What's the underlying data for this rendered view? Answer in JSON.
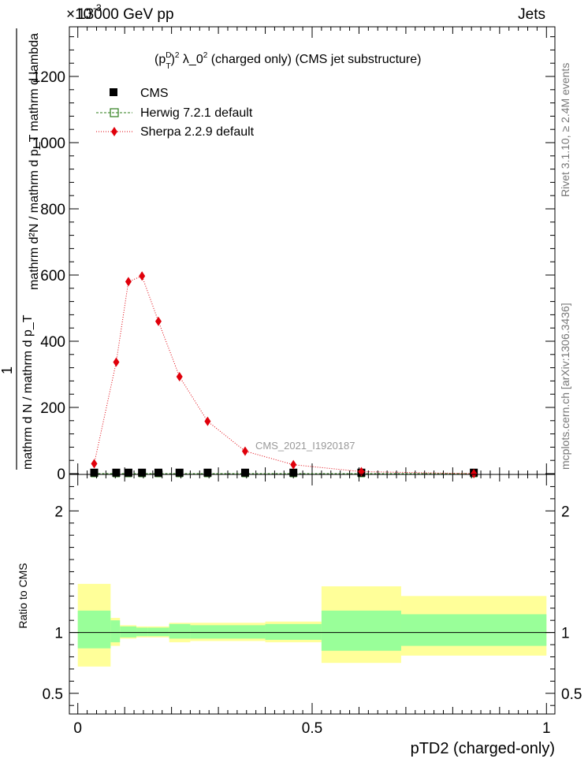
{
  "header": {
    "energy_label": "13000 GeV pp",
    "process_label": "Jets",
    "exponent_label": "×10",
    "exponent_power": "-3"
  },
  "plot": {
    "title_prefix": "(p",
    "title_sup": "D",
    "title_sub": "T",
    "title_rest": ")",
    "title_pow": "2",
    "title_suffix": " λ_0",
    "title_suffix_pow": "2",
    "title_tail": " (charged only) (CMS jet substructure)",
    "analysis_id": "CMS_2021_I1920187",
    "ylabel_top": "mathrm d²N / mathrm d p_T mathrm d lambda",
    "ylabel_numerator": "1",
    "ylabel_denominator": "mathrm d N / mathrm d p_T",
    "side_label_rivet": "Rivet 3.1.10, ≥ 2.4M events",
    "side_label_mcplots": "mcplots.cern.ch [arXiv:1306.3436]",
    "xlabel": "pTD2 (charged-only)",
    "ratio_ylabel": "Ratio to CMS"
  },
  "legend": {
    "cms": "CMS",
    "herwig": "Herwig 7.2.1 default",
    "sherpa": "Sherpa 2.2.9 default"
  },
  "chart_data": {
    "type": "line",
    "xlabel": "pTD2 (charged-only)",
    "xlim": [
      0,
      1
    ],
    "ylim": [
      0,
      1350
    ],
    "y_multiplier": "×10^-3",
    "x_ticks": [
      "0",
      "0.5",
      "1"
    ],
    "y_ticks": [
      "0",
      "200",
      "400",
      "600",
      "800",
      "1000",
      "1200"
    ],
    "series": [
      {
        "name": "CMS",
        "x": [
          0.035,
          0.082,
          0.108,
          0.137,
          0.172,
          0.217,
          0.277,
          0.357,
          0.46,
          0.605,
          0.845
        ],
        "y": [
          3,
          3,
          3,
          3,
          3,
          3,
          3,
          3,
          3,
          3,
          3
        ]
      },
      {
        "name": "Herwig 7.2.1 default",
        "x": [
          0.035,
          0.082,
          0.108,
          0.137,
          0.172,
          0.217,
          0.277,
          0.357,
          0.46,
          0.605,
          0.845
        ],
        "y": [
          0,
          0,
          0,
          0,
          0,
          0,
          0,
          0,
          0,
          0,
          0
        ]
      },
      {
        "name": "Sherpa 2.2.9 default",
        "x": [
          0.035,
          0.082,
          0.108,
          0.137,
          0.172,
          0.217,
          0.277,
          0.357,
          0.46,
          0.605,
          0.845
        ],
        "y": [
          30,
          337,
          580,
          597,
          460,
          293,
          158,
          68,
          27,
          6,
          0
        ]
      }
    ],
    "ratio": {
      "ylabel": "Ratio to CMS",
      "ylim": [
        0.33,
        2.3
      ],
      "y_ticks": [
        "0.5",
        "1",
        "2"
      ],
      "bin_edges": [
        0,
        0.07,
        0.09,
        0.125,
        0.15,
        0.195,
        0.24,
        0.315,
        0.4,
        0.52,
        0.69,
        1.0
      ],
      "band_inner": [
        [
          0.87,
          1.18
        ],
        [
          0.92,
          1.1
        ],
        [
          0.96,
          1.05
        ],
        [
          0.97,
          1.04
        ],
        [
          0.97,
          1.04
        ],
        [
          0.95,
          1.07
        ],
        [
          0.95,
          1.06
        ],
        [
          0.95,
          1.06
        ],
        [
          0.94,
          1.07
        ],
        [
          0.85,
          1.18
        ],
        [
          0.89,
          1.15
        ]
      ],
      "band_outer": [
        [
          0.72,
          1.4
        ],
        [
          0.89,
          1.12
        ],
        [
          0.95,
          1.06
        ],
        [
          0.96,
          1.05
        ],
        [
          0.96,
          1.05
        ],
        [
          0.92,
          1.08
        ],
        [
          0.93,
          1.08
        ],
        [
          0.93,
          1.08
        ],
        [
          0.92,
          1.09
        ],
        [
          0.75,
          1.38
        ],
        [
          0.81,
          1.3
        ]
      ]
    }
  }
}
